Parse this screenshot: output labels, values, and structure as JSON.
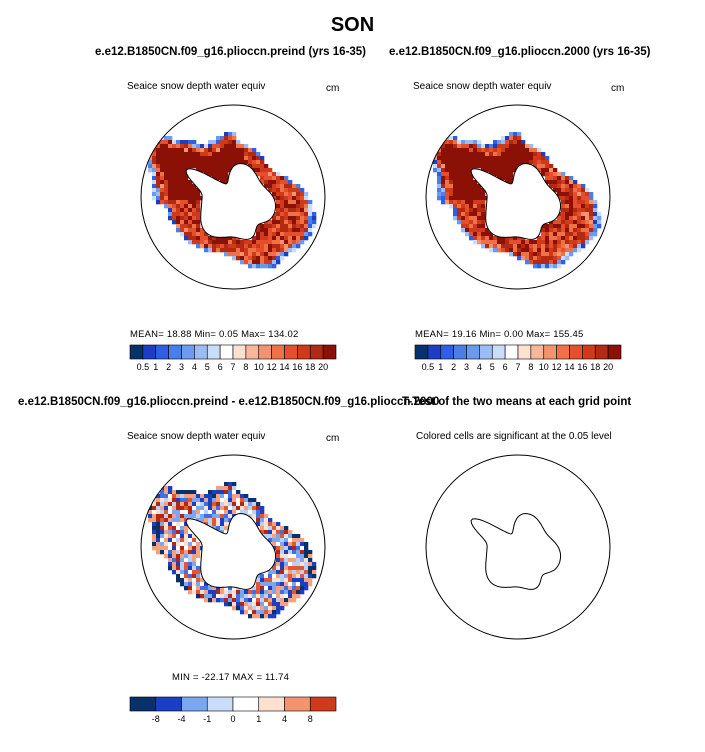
{
  "season": "SON",
  "colors": {
    "abs_scale": [
      "#08306b",
      "#1a3fc4",
      "#2f5ee6",
      "#4a7fe8",
      "#6b9bf0",
      "#9cbcf5",
      "#c9dcfa",
      "#ffffff",
      "#fde0d0",
      "#f7b79a",
      "#f4946f",
      "#ef7147",
      "#e3502b",
      "#cf3a1b",
      "#b22a12",
      "#8b1106"
    ],
    "diff_scale": [
      "#08306b",
      "#1a3fc4",
      "#3f6fe6",
      "#7aa6f2",
      "#b9d2fa",
      "#ffffff",
      "#fde0d0",
      "#f4a27d",
      "#e6562e",
      "#b52510",
      "#8b1106"
    ],
    "ice_high": "#9e0f08",
    "land": "#ffffff",
    "coast": "#000000"
  },
  "panels": {
    "top_left": {
      "case_title": "e.e12.B1850CN.f09_g16.plioccn.preind (yrs 16-35)",
      "var_title": "Seaice snow depth water equiv",
      "unit": "cm",
      "stats": "MEAN=   18.88   Min=    0.05   Max=  134.02"
    },
    "top_right": {
      "case_title": "e.e12.B1850CN.f09_g16.plioccn.2000 (yrs 16-35)",
      "var_title": "Seaice snow depth water equiv",
      "unit": "cm",
      "stats": "MEAN=   19.16   Min=    0.00   Max=  155.45"
    },
    "bottom_left": {
      "case_title": "e.e12.B1850CN.f09_g16.plioccn.preind - e.e12.B1850CN.f09_g16.plioccn.2000",
      "var_title": "Seaice snow depth water equiv",
      "unit": "cm",
      "stats": "MIN =  -22.17  MAX =   11.74"
    },
    "bottom_right": {
      "case_title": "T-Test of the two means at each grid point",
      "var_title": "Colored cells are significant at the 0.05 level"
    }
  },
  "chart_data": [
    {
      "type": "heatmap",
      "title": "Seaice snow depth water equiv",
      "case": "e.e12.B1850CN.f09_g16.plioccn.preind (yrs 16-35)",
      "units": "cm",
      "mean": 18.88,
      "min": 0.05,
      "max": 134.02,
      "colorbar_levels": [
        0.5,
        1,
        2,
        3,
        4,
        5,
        6,
        7,
        8,
        10,
        12,
        14,
        16,
        18,
        20
      ]
    },
    {
      "type": "heatmap",
      "title": "Seaice snow depth water equiv",
      "case": "e.e12.B1850CN.f09_g16.plioccn.2000 (yrs 16-35)",
      "units": "cm",
      "mean": 19.16,
      "min": 0.0,
      "max": 155.45,
      "colorbar_levels": [
        0.5,
        1,
        2,
        3,
        4,
        5,
        6,
        7,
        8,
        10,
        12,
        14,
        16,
        18,
        20
      ]
    },
    {
      "type": "heatmap",
      "title": "Seaice snow depth water equiv",
      "case": "difference",
      "units": "cm",
      "min": -22.17,
      "max": 11.74,
      "colorbar_levels": [
        -8,
        -4,
        -1,
        0,
        1,
        4,
        8
      ]
    },
    {
      "type": "heatmap",
      "title": "Colored cells are significant at the 0.05 level",
      "case": "T-Test of the two means at each grid point"
    }
  ],
  "colorbars": {
    "abs_tick_labels": [
      "0.5",
      "1",
      "2",
      "3",
      "4",
      "5",
      "6",
      "7",
      "8",
      "10",
      "12",
      "14",
      "16",
      "18",
      "20"
    ],
    "diff_tick_labels": [
      "-8",
      "-4",
      "-1",
      "0",
      "1",
      "4",
      "8"
    ]
  }
}
